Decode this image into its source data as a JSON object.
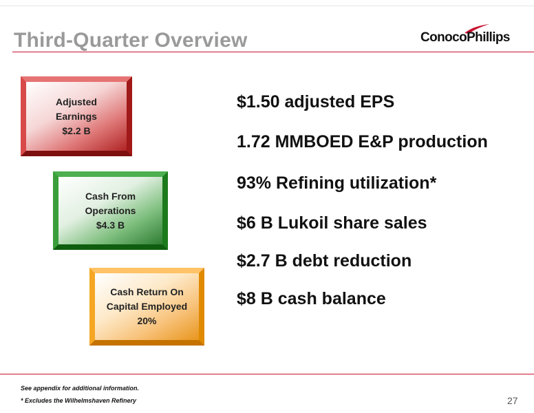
{
  "slide": {
    "title": "Third-Quarter Overview",
    "logo_text": "ConocoPhillips",
    "page_number": "27"
  },
  "kpi_boxes": [
    {
      "line1": "Adjusted",
      "line2": "Earnings",
      "line3": "$2.2 B",
      "color": "#b02424"
    },
    {
      "line1": "Cash From",
      "line2": "Operations",
      "line3": "$4.3 B",
      "color": "#2e7d32"
    },
    {
      "line1": "Cash Return On",
      "line2": "Capital Employed",
      "line3": "20%",
      "color": "#e8961e"
    }
  ],
  "highlights": [
    "$1.50 adjusted EPS",
    "1.72 MMBOED E&P production",
    "93% Refining utilization*",
    "$6 B Lukoil share sales",
    "$2.7 B debt reduction",
    "$8 B cash balance"
  ],
  "footnotes": [
    "See appendix for additional information.",
    "* Excludes the Wilhelmshaven Refinery"
  ],
  "colors": {
    "accent": "#c8102e",
    "title": "#9a9a9a"
  }
}
